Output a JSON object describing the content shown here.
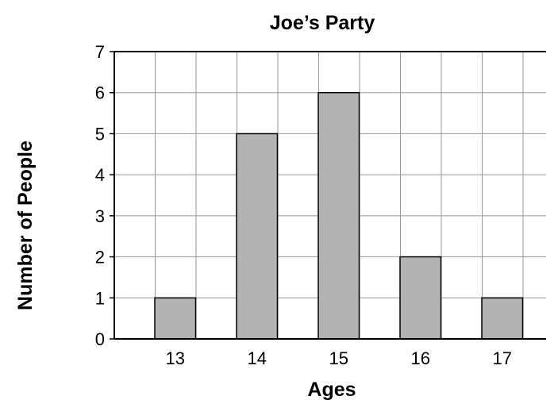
{
  "chart_data": {
    "type": "bar",
    "title": "Joe’s Party",
    "xlabel": "Ages",
    "ylabel": "Number of People",
    "categories": [
      "13",
      "14",
      "15",
      "16",
      "17"
    ],
    "values": [
      1,
      5,
      6,
      2,
      1
    ],
    "ylim": [
      0,
      7
    ],
    "yticks": [
      "0",
      "1",
      "2",
      "3",
      "4",
      "5",
      "6",
      "7"
    ],
    "grid": true,
    "bar_color": "#b3b3b3",
    "bar_edge_color": "#000000",
    "grid_color": "#999999"
  }
}
